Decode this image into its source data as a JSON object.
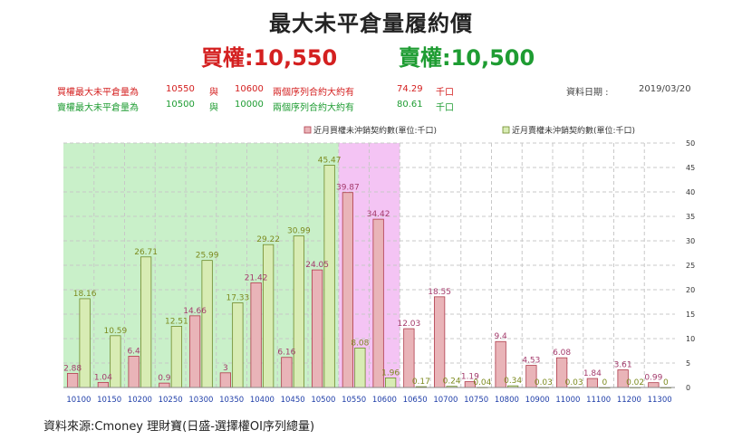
{
  "page": {
    "title": "最大未平倉量履約價",
    "call_summary": "買權:10,550",
    "put_summary": "賣權:10,500",
    "source": "資料來源:Cmoney 理財寶(日盛-選擇權OI序列總量)"
  },
  "info": {
    "call_label": "買權最大未平倉量為",
    "call_strike1": "10550",
    "and1": "與",
    "call_strike2": "10600",
    "call_desc": "兩個序列合約大約有",
    "call_value": "74.29",
    "call_unit": "千口",
    "date_label": "資料日期 :",
    "date_value": "2019/03/20",
    "put_label": "賣權最大未平倉量為",
    "put_strike1": "10500",
    "and2": "與",
    "put_strike2": "10000",
    "put_desc": "兩個序列合約大約有",
    "put_value": "80.61",
    "put_unit": "千口"
  },
  "chart_data": {
    "type": "bar",
    "categories": [
      "10100",
      "10150",
      "10200",
      "10250",
      "10300",
      "10350",
      "10400",
      "10450",
      "10500",
      "10550",
      "10600",
      "10650",
      "10700",
      "10750",
      "10800",
      "10900",
      "11000",
      "11100",
      "11200",
      "11300"
    ],
    "series": [
      {
        "name": "近月買權未沖銷契約數(單位:千口)",
        "color": "#e9b4b8",
        "edge": "#b03c4c",
        "label_color": "#a33a6b",
        "values": [
          2.88,
          1.04,
          6.4,
          0.9,
          14.66,
          3,
          21.42,
          6.16,
          24.05,
          39.87,
          34.42,
          12.03,
          18.55,
          1.19,
          9.4,
          4.53,
          6.08,
          1.84,
          3.61,
          0.99
        ]
      },
      {
        "name": "近月賣權未沖銷契約數(單位:千口)",
        "color": "#d8ecb4",
        "edge": "#6f8a2a",
        "label_color": "#7c8a1e",
        "values": [
          18.16,
          10.59,
          26.71,
          12.51,
          25.99,
          17.33,
          29.22,
          30.99,
          45.47,
          8.08,
          1.96,
          0.17,
          0.24,
          0.04,
          0.34,
          0.03,
          0.03,
          0,
          0.02,
          0
        ]
      }
    ],
    "yticks": [
      "0",
      "5",
      "10",
      "15",
      "20",
      "25",
      "30",
      "35",
      "40",
      "45",
      "50"
    ],
    "ylim": [
      0,
      50
    ],
    "legend_position": "top-right",
    "grid": true,
    "shaded_ranges": [
      {
        "from_category": "10100",
        "to_category": "10500",
        "color": "#c9f0c9"
      },
      {
        "from_category": "10550",
        "to_category": "10600",
        "color": "#f4c4f4"
      }
    ]
  }
}
